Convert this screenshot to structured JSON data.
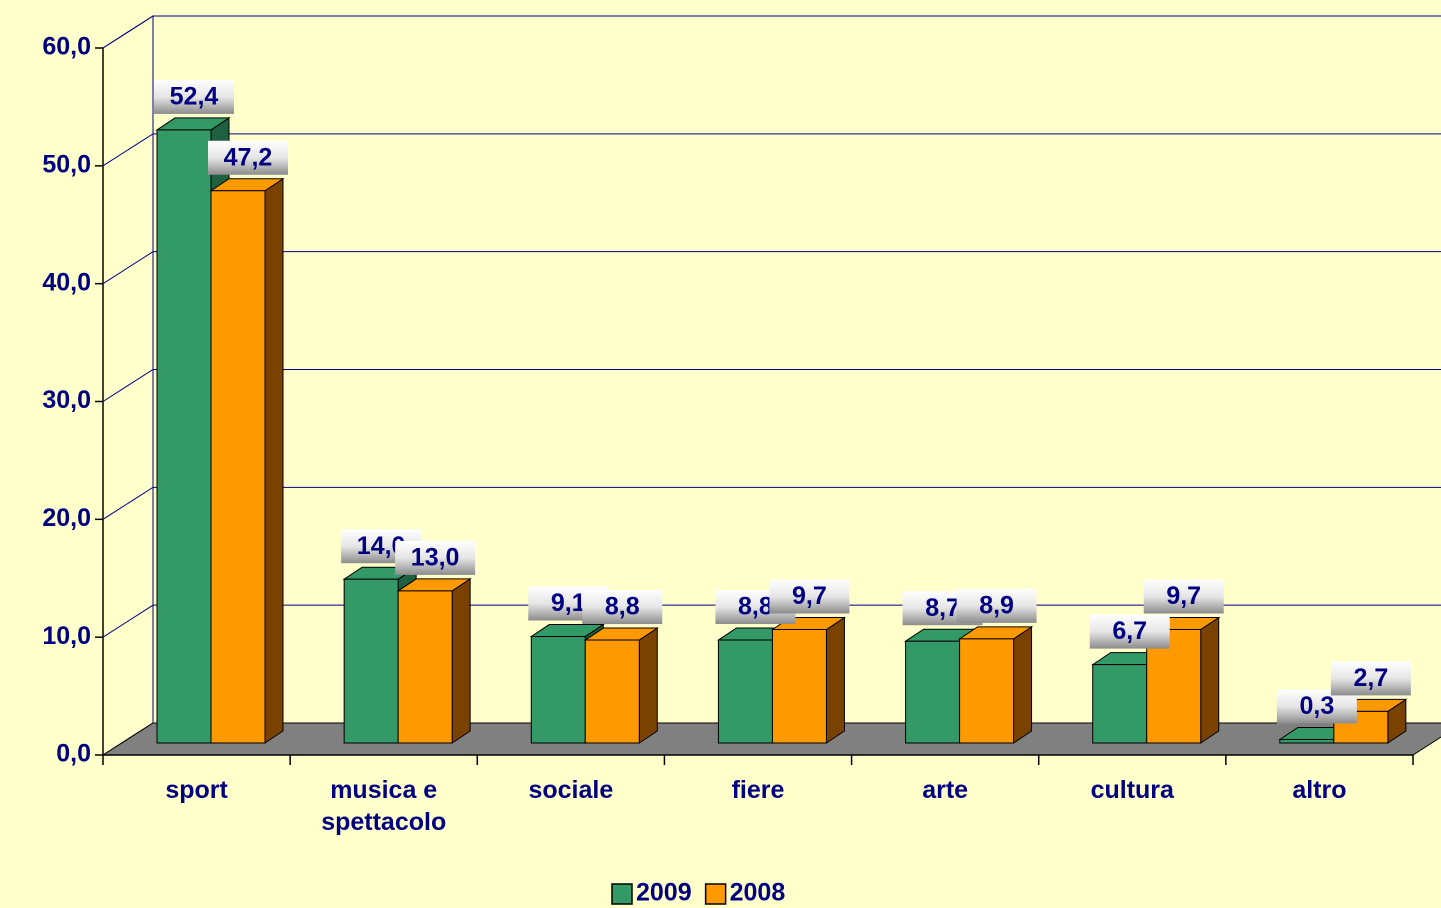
{
  "chart_data": {
    "type": "bar3d",
    "categories": [
      "sport",
      "musica e spettacolo",
      "sociale",
      "fiere",
      "arte",
      "cultura",
      "altro"
    ],
    "series": [
      {
        "name": "2009",
        "color": "#339966",
        "side_color": "#1f6040",
        "values": [
          52.4,
          14.0,
          9.1,
          8.8,
          8.7,
          6.7,
          0.3
        ],
        "value_labels": [
          "52,4",
          "14,0",
          "9,1",
          "8,8",
          "8,7",
          "6,7",
          "0,3"
        ]
      },
      {
        "name": "2008",
        "color": "#ff9900",
        "side_color": "#7a4200",
        "values": [
          47.2,
          13.0,
          8.8,
          9.7,
          8.9,
          9.7,
          2.7
        ],
        "value_labels": [
          "47,2",
          "13,0",
          "8,8",
          "9,7",
          "8,9",
          "9,7",
          "2,7"
        ]
      }
    ],
    "ylim": [
      0,
      60
    ],
    "yticks": [
      {
        "value": 0,
        "label": "0,0"
      },
      {
        "value": 10,
        "label": "10,0"
      },
      {
        "value": 20,
        "label": "20,0"
      },
      {
        "value": 30,
        "label": "30,0"
      },
      {
        "value": 40,
        "label": "40,0"
      },
      {
        "value": 50,
        "label": "50,0"
      },
      {
        "value": 60,
        "label": "60,0"
      }
    ],
    "grid": true,
    "legend": "bottom"
  }
}
